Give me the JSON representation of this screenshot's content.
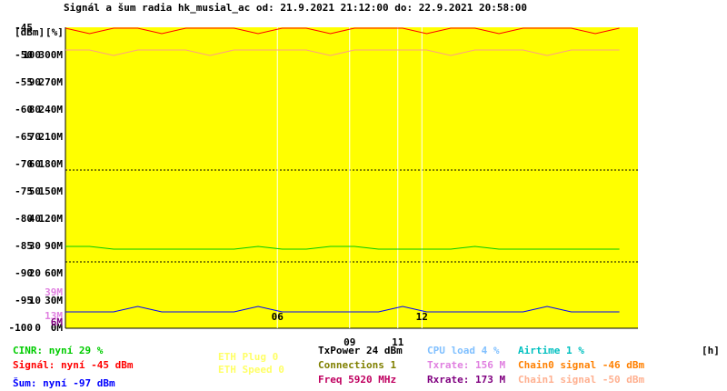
{
  "chart_data": {
    "type": "line",
    "title": "Signál a šum radia hk_musial_ac od: 21.9.2021 21:12:00 do: 22.9.2021 20:58:00",
    "y_unit_label": "[dBm]",
    "y2_unit_label": "[%]",
    "x_unit_label": "[h]",
    "xlim": [
      0,
      23.77
    ],
    "xticks": [
      {
        "value": 8.8,
        "label": "06"
      },
      {
        "value": 11.8,
        "label": "09"
      },
      {
        "value": 13.8,
        "label": "11"
      },
      {
        "value": 14.8,
        "label": "12"
      }
    ],
    "ylim": [
      -100,
      -45
    ],
    "yticks": [
      -100,
      -95,
      -90,
      -85,
      -80,
      -75,
      -70,
      -65,
      -60,
      -55,
      -50,
      -45
    ],
    "y2lim": [
      0,
      110
    ],
    "y2ticks": [
      0,
      10,
      20,
      30,
      40,
      50,
      60,
      70,
      80,
      90,
      100
    ],
    "y3lim": [
      0,
      330
    ],
    "y3ticks": [
      {
        "value": 0,
        "label": "0M"
      },
      {
        "value": 30,
        "label": "30M"
      },
      {
        "value": 60,
        "label": "60M"
      },
      {
        "value": 90,
        "label": "90M"
      },
      {
        "value": 120,
        "label": "120M"
      },
      {
        "value": 150,
        "label": "150M"
      },
      {
        "value": 180,
        "label": "180M"
      },
      {
        "value": 210,
        "label": "210M"
      },
      {
        "value": 240,
        "label": "240M"
      },
      {
        "value": 270,
        "label": "270M"
      },
      {
        "value": 300,
        "label": "300M"
      }
    ],
    "y3_markers": [
      {
        "value": 39,
        "label": "39M",
        "color": "#e080e0"
      },
      {
        "value": 13,
        "label": "13M",
        "color": "#e080e0"
      },
      {
        "value": 6,
        "label": "6M",
        "color": "#800080"
      }
    ],
    "x": [
      0,
      1,
      2,
      3,
      4,
      5,
      6,
      7,
      8,
      9,
      10,
      11,
      12,
      13,
      14,
      15,
      16,
      17,
      18,
      19,
      20,
      21,
      22,
      23
    ],
    "series": [
      {
        "name": "Signál",
        "color": "#ff0000",
        "values": [
          -45,
          -46,
          -45,
          -45,
          -46,
          -45,
          -45,
          -45,
          -46,
          -45,
          -45,
          -46,
          -45,
          -45,
          -45,
          -46,
          -45,
          -45,
          -46,
          -45,
          -45,
          -45,
          -46,
          -45
        ]
      },
      {
        "name": "Chain1",
        "color": "#ffa080",
        "values": [
          -49,
          -49,
          -50,
          -49,
          -49,
          -49,
          -50,
          -49,
          -49,
          -49,
          -49,
          -50,
          -49,
          -49,
          -49,
          -49,
          -50,
          -49,
          -49,
          -49,
          -50,
          -49,
          -49,
          -49
        ]
      },
      {
        "name": "Šum",
        "color": "#0000ff",
        "values": [
          -97,
          -97,
          -97,
          -96,
          -97,
          -97,
          -97,
          -97,
          -96,
          -97,
          -97,
          -97,
          -97,
          -97,
          -96,
          -97,
          -97,
          -97,
          -97,
          -97,
          -96,
          -97,
          -97,
          -97
        ]
      },
      {
        "name": "CINR",
        "color": "#00cc00",
        "axis": "y2",
        "values": [
          30,
          30,
          29,
          29,
          29,
          29,
          29,
          29,
          30,
          29,
          29,
          30,
          30,
          29,
          29,
          29,
          29,
          30,
          29,
          29,
          29,
          29,
          29,
          29
        ]
      }
    ],
    "legend": [
      {
        "text": "CINR: nyní 29 %",
        "color": "#00cc00"
      },
      {
        "text": "Signál: nyní -45 dBm",
        "color": "#ff0000"
      },
      {
        "text": "Šum: nyní -97 dBm",
        "color": "#0000ff"
      },
      {
        "text": "ETH Plug 0",
        "color": "#ffff66"
      },
      {
        "text": "ETH Speed 0",
        "color": "#ffff66"
      },
      {
        "text": "TxPower 24 dBm",
        "color": "#000000"
      },
      {
        "text": "Connections 1",
        "color": "#808000"
      },
      {
        "text": "Freq 5920 MHz",
        "color": "#c00060"
      },
      {
        "text": "CPU load 4 %",
        "color": "#80c0ff"
      },
      {
        "text": "Txrate: 156 M",
        "color": "#e080e0"
      },
      {
        "text": "Rxrate: 173 M",
        "color": "#800080"
      },
      {
        "text": "Airtime 1 %",
        "color": "#00c0c0"
      },
      {
        "text": "Chain0 signal -46 dBm",
        "color": "#ff8000"
      },
      {
        "text": "Chain1 signal -50 dBm",
        "color": "#ffb090"
      }
    ]
  }
}
